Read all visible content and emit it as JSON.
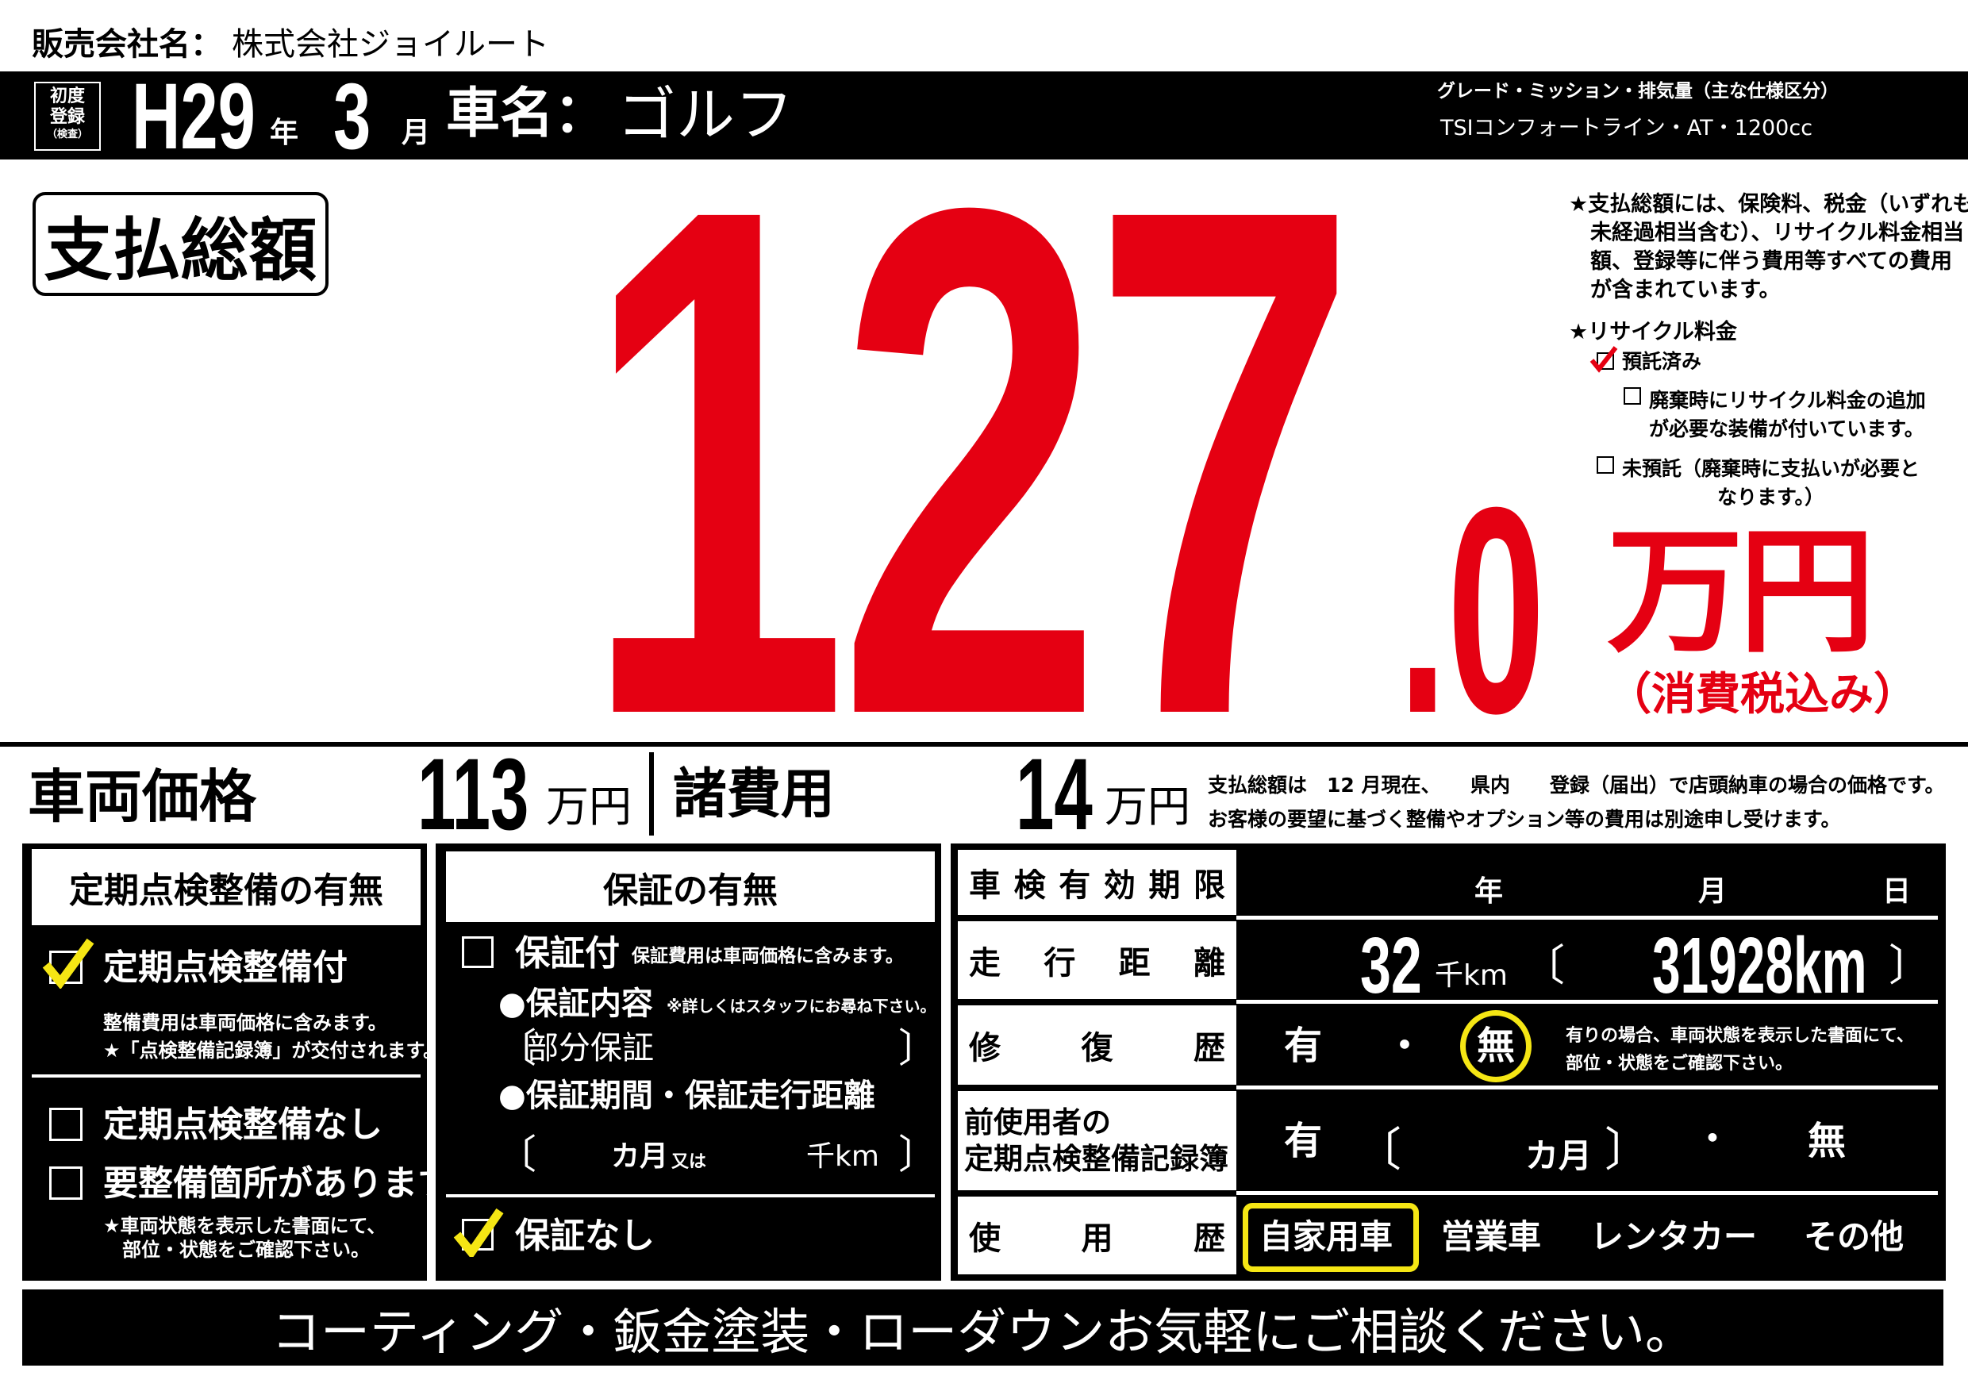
{
  "company": {
    "label": "販売会社名：",
    "name": "株式会社ジョイルート"
  },
  "header": {
    "first_reg_label": [
      "初度",
      "登録",
      "（検査）"
    ],
    "era_year": "H29",
    "year_unit": "年",
    "month": "3",
    "month_unit": "月",
    "car_name_label": "車名：",
    "car_name": "ゴルフ",
    "spec_label": "グレード・ミッション・排気量（主な仕様区分）",
    "spec_value": "TSIコンフォートライン・AT・1200cc"
  },
  "total": {
    "label": "支払総額",
    "integer": "127",
    "decimal": ".0",
    "unit": "万円",
    "tax_note": "（消費税込み）",
    "color": "#e50012"
  },
  "notes": {
    "total_note": [
      "★支払総額には、保険料、税金（いずれも",
      "未経過相当含む）、リサイクル料金相当",
      "額、登録等に伴う費用等すべての費用",
      "が含まれています。"
    ],
    "recycle_title": "★リサイクル料金",
    "recycle_options": [
      {
        "label": "預託済み",
        "checked": true
      },
      {
        "label": [
          "廃棄時にリサイクル料金の追加",
          "が必要な装備が付いています。"
        ],
        "checked": false
      },
      {
        "label": [
          "未預託（廃棄時に支払いが必要と",
          "なります。）"
        ],
        "checked": false
      }
    ]
  },
  "price_row": {
    "vehicle_price_label": "車両価格",
    "vehicle_price": "113",
    "unit": "万円",
    "fees_label": "諸費用",
    "fees": "14",
    "disclaimer": [
      "支払総額は　12 月現在、　　県内　　登録（届出）で店頭納車の場合の価格です。",
      "お客様の要望に基づく整備やオプション等の費用は別途申し受けます。"
    ]
  },
  "inspection": {
    "title": "定期点検整備の有無",
    "with": {
      "label": "定期点検整備付",
      "checked": true,
      "notes": [
        "整備費用は車両価格に含みます。",
        "★「点検整備記録簿」が交付されます。"
      ]
    },
    "without": {
      "label": "定期点検整備なし",
      "checked": false
    },
    "needs_repair": {
      "label": "要整備箇所があります",
      "checked": false,
      "notes": [
        "★車両状態を表示した書面にて、",
        "部位・状態をご確認下さい。"
      ]
    }
  },
  "warranty": {
    "title": "保証の有無",
    "with": {
      "label": "保証付",
      "checked": false,
      "note": "保証費用は車両価格に含みます。"
    },
    "content_label": "●保証内容",
    "content_note": "※詳しくはスタッフにお尋ね下さい。",
    "content_value": "部分保証",
    "period_label": "●保証期間・保証走行距離",
    "period_month_unit": "カ月",
    "period_or": "又は",
    "period_km_unit": "千km",
    "without": {
      "label": "保証なし",
      "checked": true
    }
  },
  "details": {
    "shaken": {
      "label": "車検有効期限",
      "year_unit": "年",
      "month_unit": "月",
      "day_unit": "日"
    },
    "mileage": {
      "label": "走行距離",
      "thousand_km": "32",
      "thousand_km_unit": "千km",
      "exact": "31928km"
    },
    "repair": {
      "label": "修復歴",
      "yes": "有",
      "dot": "・",
      "no": "無",
      "selected": "無",
      "note": [
        "有りの場合、車両状態を表示した書面にて、",
        "部位・状態をご確認下さい。"
      ]
    },
    "records": {
      "label": [
        "前使用者の",
        "定期点検整備記録簿"
      ],
      "yes": "有",
      "month_unit": "カ月",
      "dot": "・",
      "no": "無"
    },
    "usage": {
      "label": "使用歴",
      "options": [
        "自家用車",
        "営業車",
        "レンタカー",
        "その他"
      ],
      "selected": "自家用車"
    }
  },
  "footer": {
    "message": "コーティング・鈑金塗装・ローダウンお気軽にご相談ください。"
  },
  "colors": {
    "check_yellow": "#f5e614",
    "check_red": "#e50012"
  }
}
